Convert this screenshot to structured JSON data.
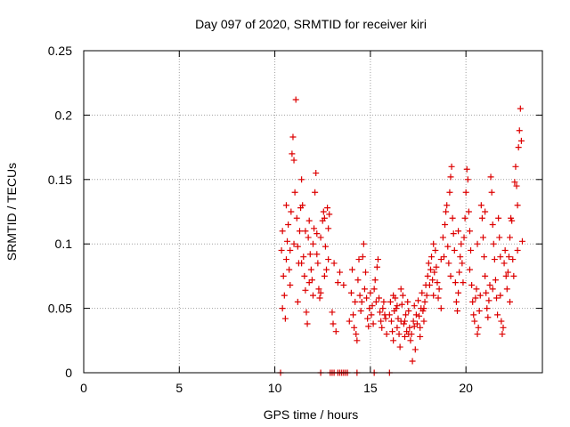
{
  "chart_data": {
    "type": "scatter",
    "title": "Day 097 of 2020, SRMTID for receiver kiri",
    "xlabel": "GPS time / hours",
    "ylabel": "SRMTID / TECUs",
    "xlim": [
      0,
      24
    ],
    "ylim": [
      0,
      0.25
    ],
    "xticks": [
      0,
      5,
      10,
      15,
      20
    ],
    "yticks": [
      0,
      0.05,
      0.1,
      0.15,
      0.2,
      0.25
    ],
    "grid": true,
    "marker": "+",
    "color": "#dd0000",
    "points": [
      [
        10.3,
        0.0
      ],
      [
        12.4,
        0.0
      ],
      [
        12.9,
        0.0
      ],
      [
        13.0,
        0.0
      ],
      [
        13.1,
        0.0
      ],
      [
        13.3,
        0.0
      ],
      [
        13.4,
        0.0
      ],
      [
        13.5,
        0.0
      ],
      [
        13.6,
        0.0
      ],
      [
        13.7,
        0.0
      ],
      [
        13.8,
        0.0
      ],
      [
        14.3,
        0.0
      ],
      [
        15.2,
        0.0
      ],
      [
        16.0,
        0.0
      ],
      [
        10.35,
        0.095
      ],
      [
        10.4,
        0.11
      ],
      [
        10.45,
        0.075
      ],
      [
        10.5,
        0.06
      ],
      [
        10.55,
        0.042
      ],
      [
        10.6,
        0.088
      ],
      [
        10.65,
        0.102
      ],
      [
        10.7,
        0.115
      ],
      [
        10.75,
        0.08
      ],
      [
        10.8,
        0.068
      ],
      [
        10.85,
        0.125
      ],
      [
        10.9,
        0.17
      ],
      [
        10.95,
        0.183
      ],
      [
        11.0,
        0.165
      ],
      [
        11.05,
        0.14
      ],
      [
        11.1,
        0.212
      ],
      [
        11.15,
        0.12
      ],
      [
        11.2,
        0.098
      ],
      [
        11.25,
        0.085
      ],
      [
        11.3,
        0.11
      ],
      [
        11.35,
        0.128
      ],
      [
        11.4,
        0.15
      ],
      [
        11.45,
        0.13
      ],
      [
        11.5,
        0.09
      ],
      [
        11.55,
        0.075
      ],
      [
        11.6,
        0.064
      ],
      [
        11.65,
        0.047
      ],
      [
        11.7,
        0.038
      ],
      [
        11.75,
        0.105
      ],
      [
        11.8,
        0.118
      ],
      [
        11.85,
        0.092
      ],
      [
        11.9,
        0.08
      ],
      [
        11.95,
        0.072
      ],
      [
        12.0,
        0.1
      ],
      [
        12.05,
        0.112
      ],
      [
        12.1,
        0.14
      ],
      [
        12.15,
        0.155
      ],
      [
        12.2,
        0.108
      ],
      [
        12.25,
        0.085
      ],
      [
        12.3,
        0.065
      ],
      [
        12.35,
        0.058
      ],
      [
        12.4,
        0.062
      ],
      [
        12.5,
        0.118
      ],
      [
        12.55,
        0.125
      ],
      [
        12.6,
        0.12
      ],
      [
        12.65,
        0.098
      ],
      [
        12.7,
        0.08
      ],
      [
        12.75,
        0.128
      ],
      [
        12.8,
        0.112
      ],
      [
        12.85,
        0.123
      ],
      [
        10.4,
        0.05
      ],
      [
        10.6,
        0.13
      ],
      [
        10.8,
        0.095
      ],
      [
        11.0,
        0.1
      ],
      [
        11.2,
        0.055
      ],
      [
        11.4,
        0.085
      ],
      [
        11.6,
        0.11
      ],
      [
        11.8,
        0.07
      ],
      [
        12.0,
        0.06
      ],
      [
        12.2,
        0.092
      ],
      [
        12.4,
        0.105
      ],
      [
        12.6,
        0.075
      ],
      [
        12.8,
        0.088
      ],
      [
        13.0,
        0.047
      ],
      [
        13.05,
        0.038
      ],
      [
        13.1,
        0.085
      ],
      [
        13.2,
        0.032
      ],
      [
        13.3,
        0.07
      ],
      [
        13.4,
        0.078
      ],
      [
        13.6,
        0.068
      ],
      [
        13.9,
        0.04
      ],
      [
        14.0,
        0.062
      ],
      [
        14.05,
        0.08
      ],
      [
        14.1,
        0.045
      ],
      [
        14.15,
        0.035
      ],
      [
        14.2,
        0.055
      ],
      [
        14.25,
        0.03
      ],
      [
        14.3,
        0.025
      ],
      [
        14.35,
        0.072
      ],
      [
        14.4,
        0.088
      ],
      [
        14.45,
        0.06
      ],
      [
        14.5,
        0.048
      ],
      [
        14.55,
        0.055
      ],
      [
        14.6,
        0.09
      ],
      [
        14.65,
        0.1
      ],
      [
        14.7,
        0.065
      ],
      [
        14.75,
        0.078
      ],
      [
        14.8,
        0.058
      ],
      [
        14.85,
        0.042
      ],
      [
        14.9,
        0.036
      ],
      [
        14.95,
        0.05
      ],
      [
        15.0,
        0.062
      ],
      [
        15.05,
        0.045
      ],
      [
        15.1,
        0.052
      ],
      [
        15.15,
        0.038
      ],
      [
        15.2,
        0.065
      ],
      [
        15.25,
        0.072
      ],
      [
        15.3,
        0.055
      ],
      [
        15.35,
        0.082
      ],
      [
        15.4,
        0.088
      ],
      [
        15.45,
        0.058
      ],
      [
        15.5,
        0.047
      ],
      [
        15.55,
        0.04
      ],
      [
        15.6,
        0.035
      ],
      [
        15.65,
        0.05
      ],
      [
        15.7,
        0.055
      ],
      [
        15.75,
        0.045
      ],
      [
        15.8,
        0.042
      ],
      [
        15.85,
        0.03
      ],
      [
        16.0,
        0.045
      ],
      [
        16.05,
        0.055
      ],
      [
        16.1,
        0.04
      ],
      [
        16.15,
        0.032
      ],
      [
        16.2,
        0.025
      ],
      [
        16.25,
        0.048
      ],
      [
        16.3,
        0.058
      ],
      [
        16.35,
        0.05
      ],
      [
        16.4,
        0.035
      ],
      [
        16.45,
        0.042
      ],
      [
        16.5,
        0.03
      ],
      [
        16.55,
        0.02
      ],
      [
        16.6,
        0.04
      ],
      [
        16.65,
        0.053
      ],
      [
        16.7,
        0.06
      ],
      [
        16.75,
        0.038
      ],
      [
        16.8,
        0.028
      ],
      [
        16.85,
        0.045
      ],
      [
        16.9,
        0.032
      ],
      [
        16.95,
        0.055
      ],
      [
        17.0,
        0.048
      ],
      [
        17.05,
        0.035
      ],
      [
        17.1,
        0.025
      ],
      [
        17.15,
        0.03
      ],
      [
        17.2,
        0.009
      ],
      [
        17.25,
        0.04
      ],
      [
        17.3,
        0.052
      ],
      [
        17.35,
        0.018
      ],
      [
        17.4,
        0.045
      ],
      [
        17.45,
        0.038
      ],
      [
        17.5,
        0.056
      ],
      [
        17.55,
        0.044
      ],
      [
        17.6,
        0.035
      ],
      [
        17.65,
        0.05
      ],
      [
        17.7,
        0.062
      ],
      [
        17.75,
        0.048
      ],
      [
        17.8,
        0.04
      ],
      [
        17.85,
        0.055
      ],
      [
        17.9,
        0.068
      ],
      [
        17.95,
        0.06
      ],
      [
        16.2,
        0.06
      ],
      [
        16.4,
        0.052
      ],
      [
        16.6,
        0.065
      ],
      [
        16.8,
        0.04
      ],
      [
        17.0,
        0.03
      ],
      [
        17.3,
        0.036
      ],
      [
        17.6,
        0.028
      ],
      [
        17.8,
        0.05
      ],
      [
        18.0,
        0.075
      ],
      [
        18.05,
        0.085
      ],
      [
        18.1,
        0.068
      ],
      [
        18.15,
        0.08
      ],
      [
        18.2,
        0.09
      ],
      [
        18.25,
        0.072
      ],
      [
        18.3,
        0.06
      ],
      [
        18.35,
        0.078
      ],
      [
        18.4,
        0.095
      ],
      [
        18.45,
        0.082
      ],
      [
        18.5,
        0.07
      ],
      [
        18.55,
        0.058
      ],
      [
        18.6,
        0.065
      ],
      [
        18.7,
        0.088
      ],
      [
        18.8,
        0.105
      ],
      [
        18.85,
        0.09
      ],
      [
        18.9,
        0.115
      ],
      [
        18.95,
        0.125
      ],
      [
        19.0,
        0.13
      ],
      [
        19.05,
        0.098
      ],
      [
        19.1,
        0.085
      ],
      [
        19.15,
        0.14
      ],
      [
        19.2,
        0.152
      ],
      [
        19.25,
        0.16
      ],
      [
        19.3,
        0.12
      ],
      [
        19.35,
        0.108
      ],
      [
        19.4,
        0.095
      ],
      [
        19.45,
        0.07
      ],
      [
        19.5,
        0.055
      ],
      [
        19.55,
        0.048
      ],
      [
        19.6,
        0.062
      ],
      [
        19.65,
        0.078
      ],
      [
        19.7,
        0.09
      ],
      [
        19.75,
        0.1
      ],
      [
        19.8,
        0.085
      ],
      [
        19.85,
        0.07
      ],
      [
        19.9,
        0.105
      ],
      [
        19.95,
        0.12
      ],
      [
        20.0,
        0.14
      ],
      [
        20.05,
        0.158
      ],
      [
        20.1,
        0.15
      ],
      [
        20.15,
        0.125
      ],
      [
        20.2,
        0.11
      ],
      [
        20.25,
        0.095
      ],
      [
        20.3,
        0.068
      ],
      [
        20.35,
        0.055
      ],
      [
        20.4,
        0.045
      ],
      [
        20.45,
        0.04
      ],
      [
        20.5,
        0.058
      ],
      [
        20.55,
        0.065
      ],
      [
        20.6,
        0.03
      ],
      [
        20.65,
        0.035
      ],
      [
        20.7,
        0.048
      ],
      [
        20.75,
        0.06
      ],
      [
        20.8,
        0.13
      ],
      [
        20.85,
        0.12
      ],
      [
        20.9,
        0.105
      ],
      [
        20.95,
        0.09
      ],
      [
        21.0,
        0.075
      ],
      [
        21.05,
        0.062
      ],
      [
        21.1,
        0.05
      ],
      [
        21.15,
        0.043
      ],
      [
        21.2,
        0.056
      ],
      [
        21.25,
        0.068
      ],
      [
        21.3,
        0.152
      ],
      [
        21.35,
        0.14
      ],
      [
        21.4,
        0.115
      ],
      [
        21.45,
        0.1
      ],
      [
        21.5,
        0.088
      ],
      [
        21.55,
        0.072
      ],
      [
        21.6,
        0.058
      ],
      [
        21.65,
        0.045
      ],
      [
        21.7,
        0.12
      ],
      [
        21.75,
        0.105
      ],
      [
        21.8,
        0.06
      ],
      [
        21.85,
        0.04
      ],
      [
        21.9,
        0.03
      ],
      [
        21.95,
        0.035
      ],
      [
        22.0,
        0.085
      ],
      [
        22.05,
        0.095
      ],
      [
        22.1,
        0.075
      ],
      [
        22.15,
        0.065
      ],
      [
        22.2,
        0.078
      ],
      [
        22.25,
        0.09
      ],
      [
        22.3,
        0.105
      ],
      [
        22.35,
        0.12
      ],
      [
        22.4,
        0.118
      ],
      [
        22.45,
        0.088
      ],
      [
        22.5,
        0.075
      ],
      [
        22.55,
        0.148
      ],
      [
        22.6,
        0.16
      ],
      [
        22.65,
        0.145
      ],
      [
        22.7,
        0.13
      ],
      [
        22.75,
        0.175
      ],
      [
        22.8,
        0.188
      ],
      [
        22.85,
        0.205
      ],
      [
        22.9,
        0.18
      ],
      [
        22.95,
        0.102
      ],
      [
        18.3,
        0.1
      ],
      [
        18.7,
        0.05
      ],
      [
        19.2,
        0.075
      ],
      [
        19.6,
        0.11
      ],
      [
        20.2,
        0.08
      ],
      [
        20.6,
        0.1
      ],
      [
        21.0,
        0.125
      ],
      [
        21.4,
        0.065
      ],
      [
        21.8,
        0.09
      ],
      [
        22.3,
        0.055
      ],
      [
        22.7,
        0.095
      ]
    ]
  }
}
